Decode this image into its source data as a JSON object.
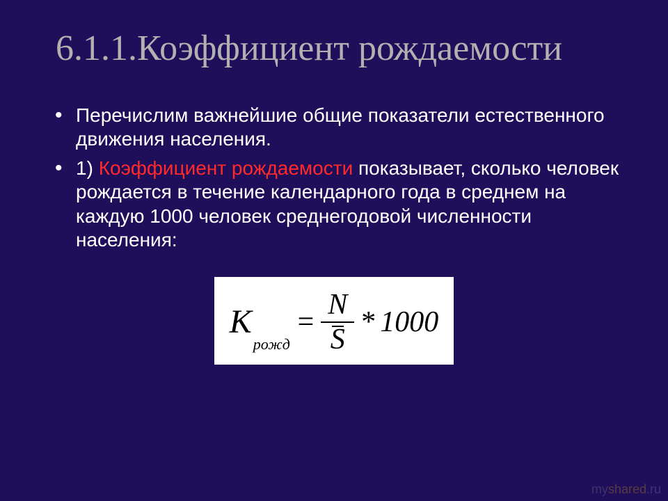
{
  "colors": {
    "background": "#1f0e5a",
    "title": "#b1b1b1",
    "body_text": "#ffffff",
    "highlight": "#ff2a2a",
    "formula_bg": "#ffffff",
    "formula_text": "#000000"
  },
  "typography": {
    "title_font": "Times New Roman",
    "title_size_pt": 40,
    "body_font": "Arial",
    "body_size_pt": 22,
    "formula_font": "Times New Roman",
    "formula_size_pt": 34
  },
  "title": "6.1.1.Коэффициент рождаемости",
  "bullets": [
    {
      "plain": "Перечислим важнейшие общие показатели естественного движения населения."
    },
    {
      "lead": "1) ",
      "highlight": "Коэффициент рождаемости",
      "rest": " показывает, сколько человек рождается в течение календарного года в среднем на каждую 1000 человек  среднегодовой численности населения:"
    }
  ],
  "formula": {
    "lhs_symbol": "K",
    "lhs_subscript": "рожд",
    "equals": "=",
    "numerator": "N",
    "denominator": "S",
    "denominator_has_overline": true,
    "multiply": "*",
    "constant": "1000"
  },
  "watermark": {
    "part1": "my",
    "part2": "shared",
    "suffix": ".ru"
  }
}
